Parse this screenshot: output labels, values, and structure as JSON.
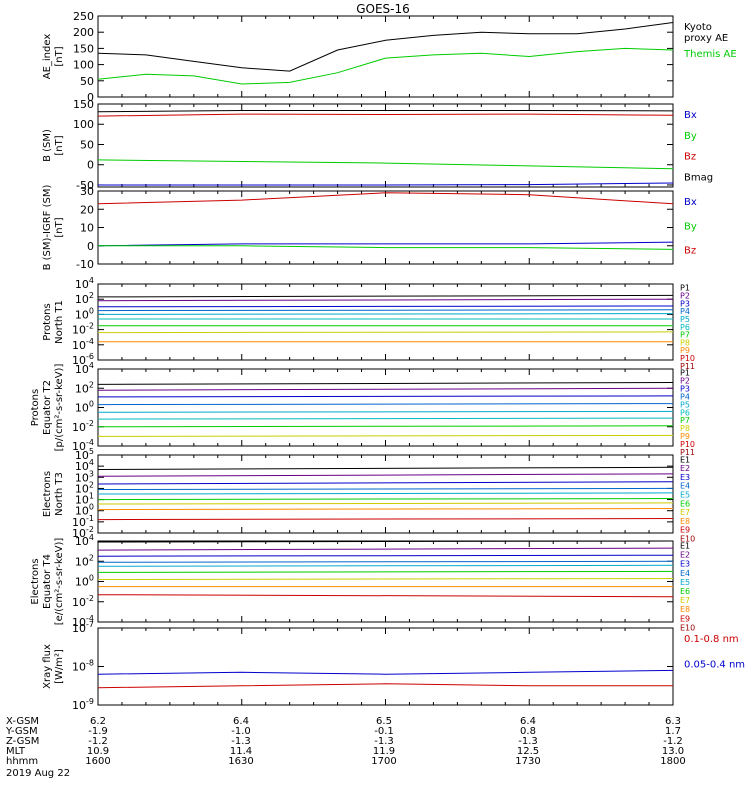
{
  "title": "GOES-16",
  "chart_data": [
    {
      "type": "line",
      "ylabel": "AE_index\n[nT]",
      "ylim": [
        0,
        250
      ],
      "yticks": [
        "0",
        "50",
        "100",
        "150",
        "200",
        "250"
      ],
      "x": [
        1600,
        1610,
        1620,
        1630,
        1640,
        1650,
        1700,
        1710,
        1720,
        1730,
        1740,
        1750,
        1800
      ],
      "series": [
        {
          "name": "Kyoto\nproxy AE",
          "color": "#000000",
          "values": [
            135,
            130,
            110,
            90,
            80,
            145,
            175,
            190,
            200,
            195,
            195,
            210,
            230
          ]
        },
        {
          "name": "Themis AE",
          "color": "#00cc00",
          "values": [
            55,
            70,
            65,
            40,
            45,
            75,
            120,
            130,
            135,
            125,
            140,
            150,
            145
          ]
        }
      ]
    },
    {
      "type": "line",
      "ylabel": "B (SM)\n[nT]",
      "ylim": [
        -55,
        150
      ],
      "yticks": [
        "-50",
        "0",
        "50",
        "100",
        "150"
      ],
      "x": [
        1600,
        1630,
        1700,
        1730,
        1800
      ],
      "series": [
        {
          "name": "Bx",
          "color": "#0000cc",
          "values": [
            -50,
            -50,
            -50,
            -49,
            -45
          ]
        },
        {
          "name": "By",
          "color": "#00cc00",
          "values": [
            12,
            8,
            4,
            -3,
            -10
          ]
        },
        {
          "name": "Bz",
          "color": "#cc0000",
          "values": [
            120,
            125,
            124,
            125,
            122
          ]
        },
        {
          "name": "Bmag",
          "color": "#000000",
          "values": [
            131,
            134,
            134,
            134,
            133
          ]
        }
      ]
    },
    {
      "type": "line",
      "ylabel": "B (SM)-IGRF (SM)\n[nT]",
      "ylim": [
        -10,
        30
      ],
      "yticks": [
        "-10",
        "0",
        "10",
        "20",
        "30"
      ],
      "x": [
        1600,
        1630,
        1700,
        1730,
        1800
      ],
      "series": [
        {
          "name": "Bx",
          "color": "#0000cc",
          "values": [
            0,
            1,
            1,
            1,
            2
          ]
        },
        {
          "name": "By",
          "color": "#00cc00",
          "values": [
            0,
            0,
            -1,
            -1,
            -2
          ]
        },
        {
          "name": "Bz",
          "color": "#cc0000",
          "values": [
            23,
            25,
            29,
            28,
            23
          ]
        }
      ]
    },
    {
      "type": "line",
      "ylabel": "Protons\nNorth T1",
      "ylim": [
        -6,
        4
      ],
      "log": true,
      "yticks": [
        "10^4",
        "10^2",
        "10^0",
        "10^-2",
        "10^-4",
        "10^-6"
      ],
      "x": [
        1600,
        1800
      ],
      "series": [
        {
          "name": "P1",
          "color": "#000000",
          "values": [
            2.3,
            2.5
          ]
        },
        {
          "name": "P2",
          "color": "#660088",
          "values": [
            1.8,
            2.0
          ]
        },
        {
          "name": "P3",
          "color": "#0000cc",
          "values": [
            1.0,
            1.1
          ]
        },
        {
          "name": "P4",
          "color": "#0066cc",
          "values": [
            0.5,
            0.6
          ]
        },
        {
          "name": "P5",
          "color": "#00aacc",
          "values": [
            0.0,
            0.1
          ]
        },
        {
          "name": "P6",
          "color": "#00bbbb",
          "values": [
            -0.6,
            -0.6
          ]
        },
        {
          "name": "P7",
          "color": "#00cc00",
          "values": [
            -1.5,
            -1.5
          ]
        },
        {
          "name": "P8",
          "color": "#cccc00",
          "values": [
            -2.4,
            -2.3
          ]
        },
        {
          "name": "P9",
          "color": "#ff8800",
          "values": [
            -3.6,
            -3.6
          ]
        },
        {
          "name": "P10",
          "color": "#cc0000",
          "values": [
            null,
            null
          ]
        },
        {
          "name": "P11",
          "color": "#990000",
          "values": [
            null,
            null
          ]
        }
      ]
    },
    {
      "type": "line",
      "ylabel": "Protons\nEquator T2\n[p/(cm²-s-sr-keV)]",
      "ylim": [
        -4,
        4
      ],
      "log": true,
      "yticks": [
        "10^4",
        "10^2",
        "10^0",
        "10^-2",
        "10^-4"
      ],
      "x": [
        1600,
        1800
      ],
      "series": [
        {
          "name": "P1",
          "color": "#000000",
          "values": [
            2.4,
            2.6
          ]
        },
        {
          "name": "P2",
          "color": "#660088",
          "values": [
            1.8,
            2.0
          ]
        },
        {
          "name": "P3",
          "color": "#0000cc",
          "values": [
            1.1,
            1.2
          ]
        },
        {
          "name": "P4",
          "color": "#0066cc",
          "values": [
            0.3,
            0.4
          ]
        },
        {
          "name": "P5",
          "color": "#00aacc",
          "values": [
            -0.5,
            -0.4
          ]
        },
        {
          "name": "P6",
          "color": "#00bbbb",
          "values": [
            -1.2,
            -1.1
          ]
        },
        {
          "name": "P7",
          "color": "#00cc00",
          "values": [
            -2.0,
            -1.9
          ]
        },
        {
          "name": "P8",
          "color": "#cccc00",
          "values": [
            -3.0,
            -2.9
          ]
        },
        {
          "name": "P9",
          "color": "#ff8800",
          "values": [
            null,
            null
          ]
        },
        {
          "name": "P10",
          "color": "#cc0000",
          "values": [
            null,
            null
          ]
        },
        {
          "name": "P11",
          "color": "#990000",
          "values": [
            null,
            null
          ]
        }
      ]
    },
    {
      "type": "line",
      "ylabel": "Electrons\nNorth T3",
      "ylim": [
        -2,
        5
      ],
      "log": true,
      "yticks": [
        "10^5",
        "10^4",
        "10^3",
        "10^2",
        "10^1",
        "10^0",
        "10^-1",
        "10^-2"
      ],
      "x": [
        1600,
        1800
      ],
      "series": [
        {
          "name": "E1",
          "color": "#000000",
          "values": [
            3.7,
            3.9
          ]
        },
        {
          "name": "E2",
          "color": "#660088",
          "values": [
            3.1,
            3.3
          ]
        },
        {
          "name": "E3",
          "color": "#0000cc",
          "values": [
            2.4,
            2.6
          ]
        },
        {
          "name": "E4",
          "color": "#0066cc",
          "values": [
            1.9,
            2.0
          ]
        },
        {
          "name": "E5",
          "color": "#00aacc",
          "values": [
            1.5,
            1.6
          ]
        },
        {
          "name": "E6",
          "color": "#00cc00",
          "values": [
            1.0,
            1.1
          ]
        },
        {
          "name": "E7",
          "color": "#cccc00",
          "values": [
            0.6,
            0.7
          ]
        },
        {
          "name": "E8",
          "color": "#ff8800",
          "values": [
            0.1,
            0.2
          ]
        },
        {
          "name": "E9",
          "color": "#cc0000",
          "values": [
            -0.8,
            -0.7
          ]
        },
        {
          "name": "E10",
          "color": "#990000",
          "values": [
            null,
            null
          ]
        }
      ]
    },
    {
      "type": "line",
      "ylabel": "Electrons\nEquator T4\n[e/(cm²-s-sr-keV)]",
      "ylim": [
        -4,
        4
      ],
      "log": true,
      "yticks": [
        "10^4",
        "10^2",
        "10^0",
        "10^-2",
        "10^-4"
      ],
      "x": [
        1600,
        1800
      ],
      "series": [
        {
          "name": "E1",
          "color": "#000000",
          "values": [
            3.9,
            4.0
          ]
        },
        {
          "name": "E2",
          "color": "#660088",
          "values": [
            3.1,
            3.3
          ]
        },
        {
          "name": "E3",
          "color": "#0000cc",
          "values": [
            2.5,
            2.6
          ]
        },
        {
          "name": "E4",
          "color": "#0066cc",
          "values": [
            1.9,
            2.0
          ]
        },
        {
          "name": "E5",
          "color": "#00aacc",
          "values": [
            1.5,
            1.6
          ]
        },
        {
          "name": "E6",
          "color": "#00cc00",
          "values": [
            0.9,
            1.0
          ]
        },
        {
          "name": "E7",
          "color": "#cccc00",
          "values": [
            0.2,
            0.3
          ]
        },
        {
          "name": "E8",
          "color": "#ff8800",
          "values": [
            -0.5,
            -0.5
          ]
        },
        {
          "name": "E9",
          "color": "#cc0000",
          "values": [
            -1.3,
            -1.5
          ]
        },
        {
          "name": "E10",
          "color": "#990000",
          "values": [
            null,
            null
          ]
        }
      ]
    },
    {
      "type": "line",
      "ylabel": "Xray flux\n[W/m²]",
      "ylim": [
        -9,
        -7
      ],
      "log": true,
      "yticks": [
        "10^-7",
        "10^-8",
        "10^-9"
      ],
      "x": [
        1600,
        1630,
        1700,
        1730,
        1800
      ],
      "series": [
        {
          "name": "0.1-0.8 nm",
          "color": "#cc0000",
          "values": [
            -8.55,
            -8.5,
            -8.45,
            -8.5,
            -8.5
          ]
        },
        {
          "name": "0.05-0.4 nm",
          "color": "#0000cc",
          "values": [
            -8.2,
            -8.15,
            -8.2,
            -8.15,
            -8.1
          ]
        }
      ]
    }
  ],
  "orbit_table": {
    "rows": [
      {
        "label": "X-GSM",
        "values": [
          "6.2",
          "6.4",
          "6.5",
          "6.4",
          "6.3"
        ]
      },
      {
        "label": "Y-GSM",
        "values": [
          "-1.9",
          "-1.0",
          "-0.1",
          "0.8",
          "1.7"
        ]
      },
      {
        "label": "Z-GSM",
        "values": [
          "-1.2",
          "-1.3",
          "-1.3",
          "-1.3",
          "-1.2"
        ]
      },
      {
        "label": "MLT",
        "values": [
          "10.9",
          "11.4",
          "11.9",
          "12.5",
          "13.0"
        ]
      },
      {
        "label": "hhmm",
        "values": [
          "1600",
          "1630",
          "1700",
          "1730",
          "1800"
        ]
      }
    ],
    "date": "2019 Aug 22"
  }
}
